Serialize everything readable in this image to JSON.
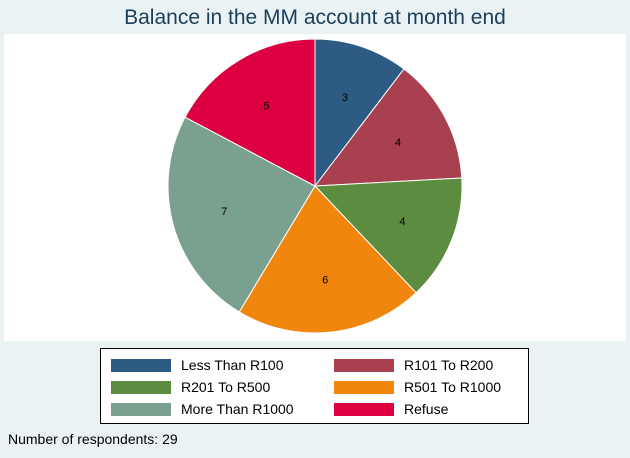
{
  "chart_data": {
    "type": "pie",
    "title": "Balance in the MM account at month end",
    "categories": [
      "Less Than R100",
      "R101 To R200",
      "R201 To R500",
      "R501 To R1000",
      "More Than R1000",
      "Refuse"
    ],
    "values": [
      3,
      4,
      4,
      6,
      7,
      5
    ],
    "colors": [
      "#2d5b84",
      "#a8404f",
      "#5c8c3f",
      "#f0860e",
      "#7aa08f",
      "#dc0040"
    ],
    "legend_position": "bottom",
    "start_angle": "12 o'clock, clockwise",
    "footnote": "Number of respondents: 29"
  }
}
